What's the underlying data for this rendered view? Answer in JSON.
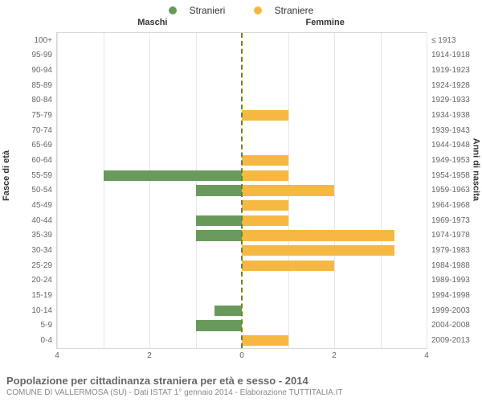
{
  "legend": {
    "male_label": "Stranieri",
    "female_label": "Straniere",
    "male_color": "#6a9a5b",
    "female_color": "#f5b943"
  },
  "side_titles": {
    "left": "Maschi",
    "right": "Femmine"
  },
  "axis_titles": {
    "left": "Fasce di età",
    "right": "Anni di nascita"
  },
  "chart": {
    "type": "population-pyramid",
    "xlim": 4,
    "xticks_left": [
      4,
      2,
      0
    ],
    "xticks_right": [
      0,
      2,
      4
    ],
    "background_color": "#ffffff",
    "grid_color": "#e6e6e6",
    "center_line_color": "#808000",
    "label_color": "#666666",
    "label_fontsize": 10,
    "rows": [
      {
        "age": "100+",
        "birth": "≤ 1913",
        "m": 0,
        "f": 0
      },
      {
        "age": "95-99",
        "birth": "1914-1918",
        "m": 0,
        "f": 0
      },
      {
        "age": "90-94",
        "birth": "1919-1923",
        "m": 0,
        "f": 0
      },
      {
        "age": "85-89",
        "birth": "1924-1928",
        "m": 0,
        "f": 0
      },
      {
        "age": "80-84",
        "birth": "1929-1933",
        "m": 0,
        "f": 0
      },
      {
        "age": "75-79",
        "birth": "1934-1938",
        "m": 0,
        "f": 1
      },
      {
        "age": "70-74",
        "birth": "1939-1943",
        "m": 0,
        "f": 0
      },
      {
        "age": "65-69",
        "birth": "1944-1948",
        "m": 0,
        "f": 0
      },
      {
        "age": "60-64",
        "birth": "1949-1953",
        "m": 0,
        "f": 1
      },
      {
        "age": "55-59",
        "birth": "1954-1958",
        "m": 3,
        "f": 1
      },
      {
        "age": "50-54",
        "birth": "1959-1963",
        "m": 1,
        "f": 2
      },
      {
        "age": "45-49",
        "birth": "1964-1968",
        "m": 0,
        "f": 1
      },
      {
        "age": "40-44",
        "birth": "1969-1973",
        "m": 1,
        "f": 1
      },
      {
        "age": "35-39",
        "birth": "1974-1978",
        "m": 1,
        "f": 3.3
      },
      {
        "age": "30-34",
        "birth": "1979-1983",
        "m": 0,
        "f": 3.3
      },
      {
        "age": "25-29",
        "birth": "1984-1988",
        "m": 0,
        "f": 2
      },
      {
        "age": "20-24",
        "birth": "1989-1993",
        "m": 0,
        "f": 0
      },
      {
        "age": "15-19",
        "birth": "1994-1998",
        "m": 0,
        "f": 0
      },
      {
        "age": "10-14",
        "birth": "1999-2003",
        "m": 0.6,
        "f": 0
      },
      {
        "age": "5-9",
        "birth": "2004-2008",
        "m": 1,
        "f": 0
      },
      {
        "age": "0-4",
        "birth": "2009-2013",
        "m": 0,
        "f": 1
      }
    ]
  },
  "caption": {
    "title": "Popolazione per cittadinanza straniera per età e sesso - 2014",
    "subtitle": "COMUNE DI VALLERMOSA (SU) - Dati ISTAT 1° gennaio 2014 - Elaborazione TUTTITALIA.IT"
  }
}
